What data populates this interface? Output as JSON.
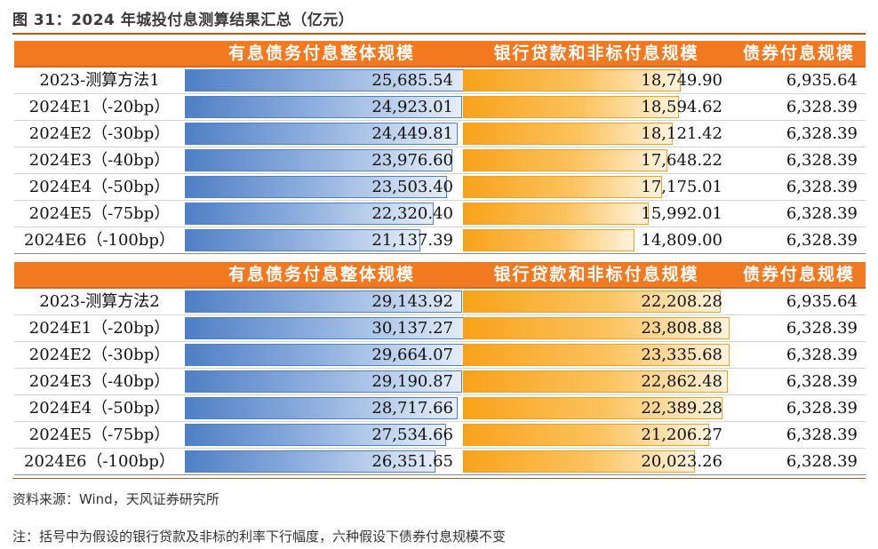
{
  "title": "图 31：2024 年城投付息测算结果汇总（亿元）",
  "colors": {
    "header_bg": "#f37921",
    "bar_interest_bearing": "#4f7fc5",
    "bar_bank_loan": "#f8a21a"
  },
  "tables": [
    {
      "headers": [
        "有息债务付息整体规模",
        "银行贷款和非标付息规模",
        "债券付息规模"
      ],
      "scale_max": 26000,
      "rows": [
        {
          "label": "2023-测算方法1",
          "total": "25,685.54",
          "loan": "18,749.90",
          "bond": "6,935.64",
          "total_num": 25685.54,
          "loan_num": 18749.9
        },
        {
          "label": "2024E1（-20bp）",
          "total": "24,923.01",
          "loan": "18,594.62",
          "bond": "6,328.39",
          "total_num": 24923.01,
          "loan_num": 18594.62
        },
        {
          "label": "2024E2（-30bp）",
          "total": "24,449.81",
          "loan": "18,121.42",
          "bond": "6,328.39",
          "total_num": 24449.81,
          "loan_num": 18121.42
        },
        {
          "label": "2024E3（-40bp）",
          "total": "23,976.60",
          "loan": "17,648.22",
          "bond": "6,328.39",
          "total_num": 23976.6,
          "loan_num": 17648.22
        },
        {
          "label": "2024E4（-50bp）",
          "total": "23,503.40",
          "loan": "17,175.01",
          "bond": "6,328.39",
          "total_num": 23503.4,
          "loan_num": 17175.01
        },
        {
          "label": "2024E5（-75bp）",
          "total": "22,320.40",
          "loan": "15,992.01",
          "bond": "6,328.39",
          "total_num": 22320.4,
          "loan_num": 15992.01
        },
        {
          "label": "2024E6（-100bp）",
          "total": "21,137.39",
          "loan": "14,809.00",
          "bond": "6,328.39",
          "total_num": 21137.39,
          "loan_num": 14809.0
        }
      ]
    },
    {
      "headers": [
        "有息债务付息整体规模",
        "银行贷款和非标付息规模",
        "债券付息规模"
      ],
      "scale_max": 30500,
      "rows": [
        {
          "label": "2023-测算方法2",
          "total": "29,143.92",
          "loan": "22,208.28",
          "bond": "6,935.64",
          "total_num": 29143.92,
          "loan_num": 22208.28
        },
        {
          "label": "2024E1（-20bp）",
          "total": "30,137.27",
          "loan": "23,808.88",
          "bond": "6,328.39",
          "total_num": 30137.27,
          "loan_num": 23808.88
        },
        {
          "label": "2024E2（-30bp）",
          "total": "29,664.07",
          "loan": "23,335.68",
          "bond": "6,328.39",
          "total_num": 29664.07,
          "loan_num": 23335.68
        },
        {
          "label": "2024E3（-40bp）",
          "total": "29,190.87",
          "loan": "22,862.48",
          "bond": "6,328.39",
          "total_num": 29190.87,
          "loan_num": 22862.48
        },
        {
          "label": "2024E4（-50bp）",
          "total": "28,717.66",
          "loan": "22,389.28",
          "bond": "6,328.39",
          "total_num": 28717.66,
          "loan_num": 22389.28
        },
        {
          "label": "2024E5（-75bp）",
          "total": "27,534.66",
          "loan": "21,206.27",
          "bond": "6,328.39",
          "total_num": 27534.66,
          "loan_num": 21206.27
        },
        {
          "label": "2024E6（-100bp）",
          "total": "26,351.65",
          "loan": "20,023.26",
          "bond": "6,328.39",
          "total_num": 26351.65,
          "loan_num": 20023.26
        }
      ]
    }
  ],
  "source": "资料来源：Wind，天风证券研究所",
  "footnote": "注：括号中为假设的银行贷款及非标的利率下行幅度，六种假设下债券付息规模不变"
}
